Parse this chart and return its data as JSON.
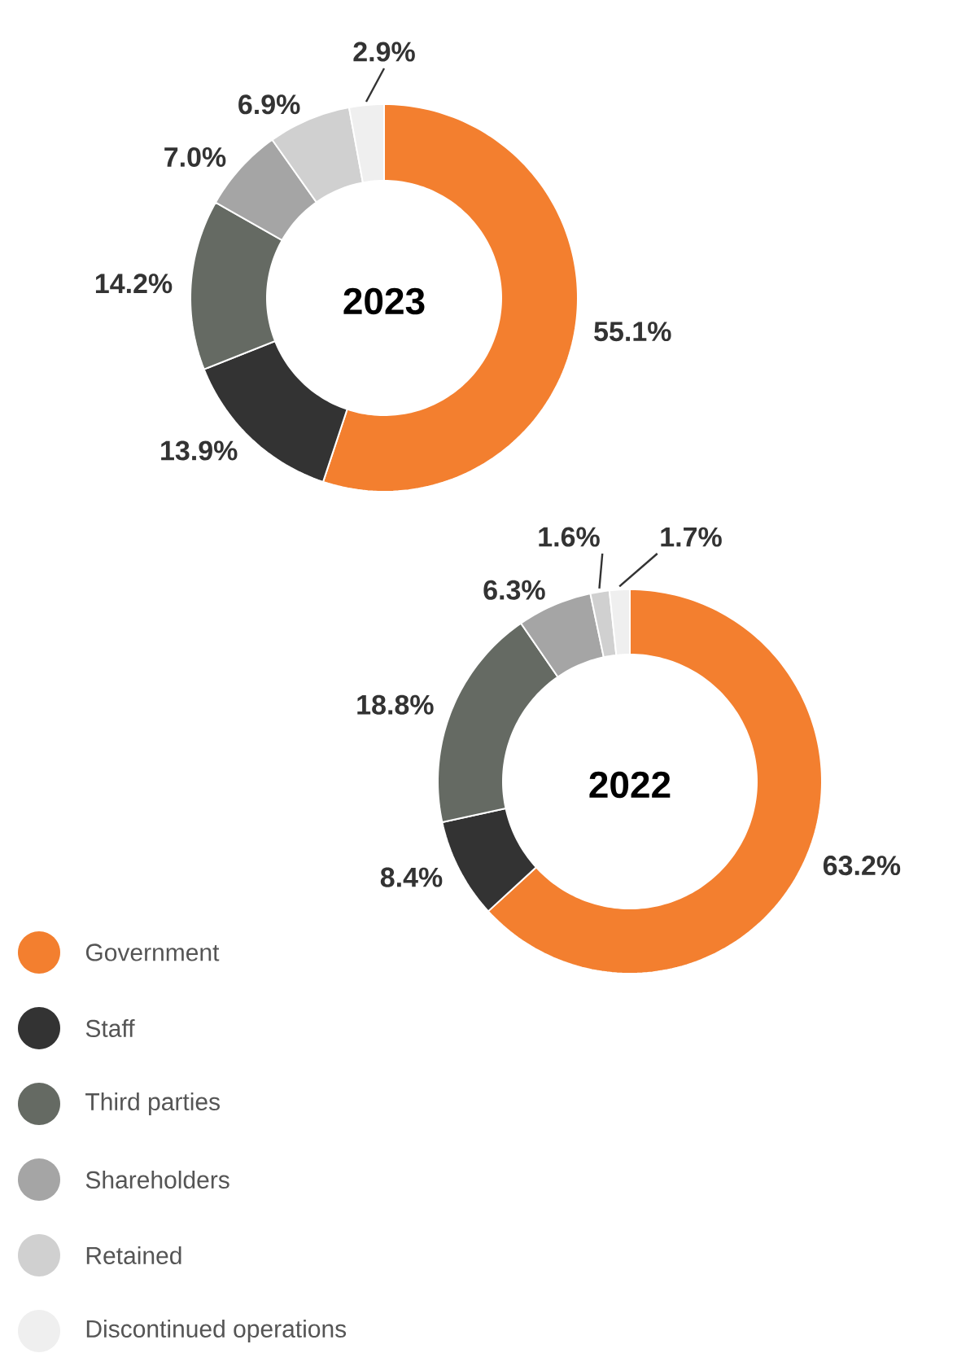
{
  "chart_data": [
    {
      "type": "donut",
      "title": "2023",
      "categories": [
        null,
        null,
        null,
        null,
        null,
        null
      ],
      "values": [
        55.1,
        13.9,
        14.2,
        7.0,
        6.9,
        2.9
      ],
      "colors": [
        "#f37f2f",
        "#333333",
        "#656a63",
        "#a5a5a5",
        "#d0d0d0",
        "#efefef"
      ],
      "value_labels": [
        "55.1%",
        "13.9%",
        "14.2%",
        "7.0%",
        "6.9%",
        "2.9%"
      ]
    },
    {
      "type": "donut",
      "title": "2022",
      "categories": [
        "Government",
        "Staff",
        "Third parties",
        "Shareholders",
        "Retained",
        "Discontinued operations"
      ],
      "values": [
        63.2,
        8.4,
        18.8,
        6.3,
        1.6,
        1.7
      ],
      "colors": [
        "#f37f2f",
        "#333333",
        "#656a63",
        "#a5a5a5",
        "#d0d0d0",
        "#efefef"
      ],
      "value_labels": [
        "63.2%",
        "8.4%",
        "18.8%",
        "6.3%",
        "1.6%",
        "1.7%"
      ],
      "legend": "bottom left"
    }
  ]
}
